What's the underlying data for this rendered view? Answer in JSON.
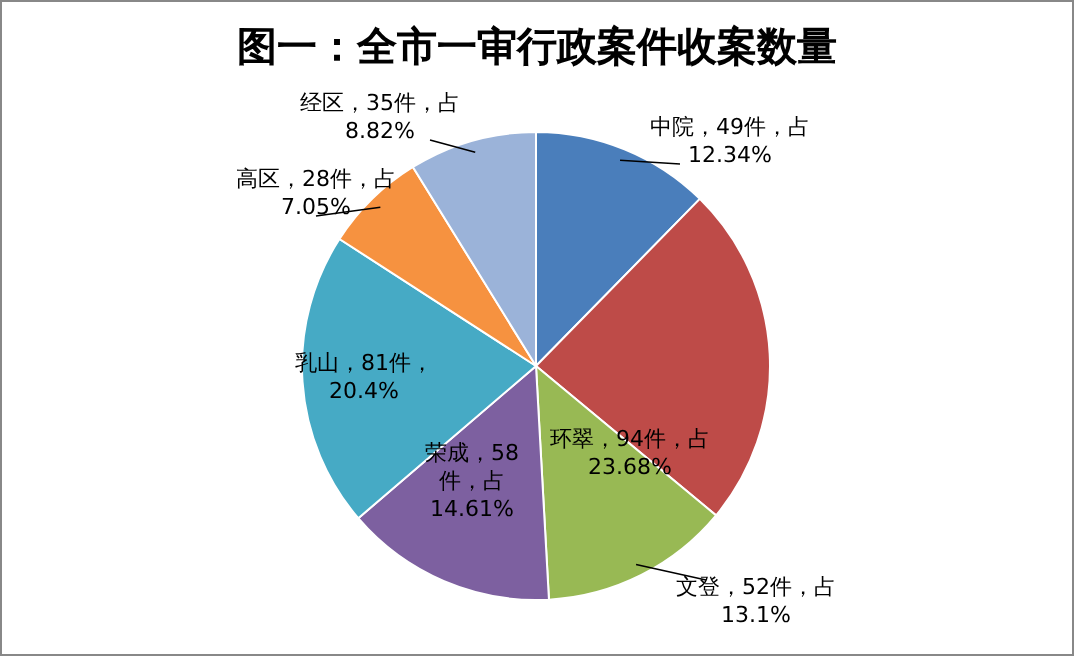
{
  "chart_data": {
    "type": "pie",
    "title": "图一：全市一审行政案件收案数量",
    "categories": [
      "中院",
      "环翠",
      "文登",
      "荣成",
      "乳山",
      "高区",
      "经区"
    ],
    "values": [
      49,
      94,
      52,
      58,
      81,
      28,
      35
    ],
    "colors": [
      "#4a7ebb",
      "#be4b48",
      "#98b954",
      "#7d60a0",
      "#46aac5",
      "#f69240",
      "#9bb3d9"
    ],
    "value_labels": [
      "49件，占\n12.34%",
      "94件，占\n23.68%",
      "52件，占\n13.1%",
      "58\n件，占\n14.61%",
      "81件，\n20.4%",
      "28件，占\n7.05%",
      "35件，占\n8.82%"
    ]
  }
}
